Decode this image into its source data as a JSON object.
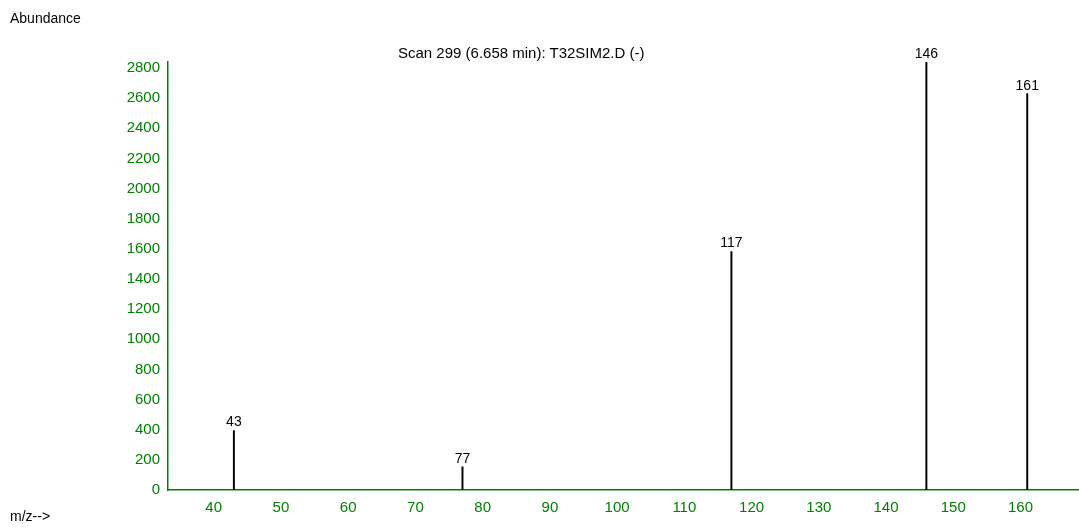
{
  "chart_data": {
    "type": "bar",
    "title": "Scan 299 (6.658 min): T32SIM2.D (-)",
    "ylabel": "Abundance",
    "x": [
      43,
      77,
      117,
      146,
      161
    ],
    "values": [
      394,
      154,
      1582,
      2839,
      2630
    ],
    "annotations": [
      "m/z-->",
      {
        "text": "43",
        "x": 43,
        "y": 394
      },
      {
        "text": "77",
        "x": 77,
        "y": 154
      },
      {
        "text": "117",
        "x": 117,
        "y": 1582
      },
      {
        "text": "146",
        "x": 146,
        "y": 2839
      },
      {
        "text": "161",
        "x": 161,
        "y": 2630
      }
    ],
    "color": "#000000",
    "xlim": [
      33.2,
      168.7
    ],
    "xticks": [
      40,
      50,
      60,
      70,
      80,
      90,
      100,
      110,
      120,
      130,
      140,
      150,
      160
    ],
    "ylim": [
      0,
      2840
    ],
    "yticks": [
      0,
      200,
      400,
      600,
      800,
      1000,
      1200,
      1400,
      1600,
      1800,
      2000,
      2200,
      2400,
      2600,
      2800
    ],
    "grid": false,
    "legend": false
  }
}
